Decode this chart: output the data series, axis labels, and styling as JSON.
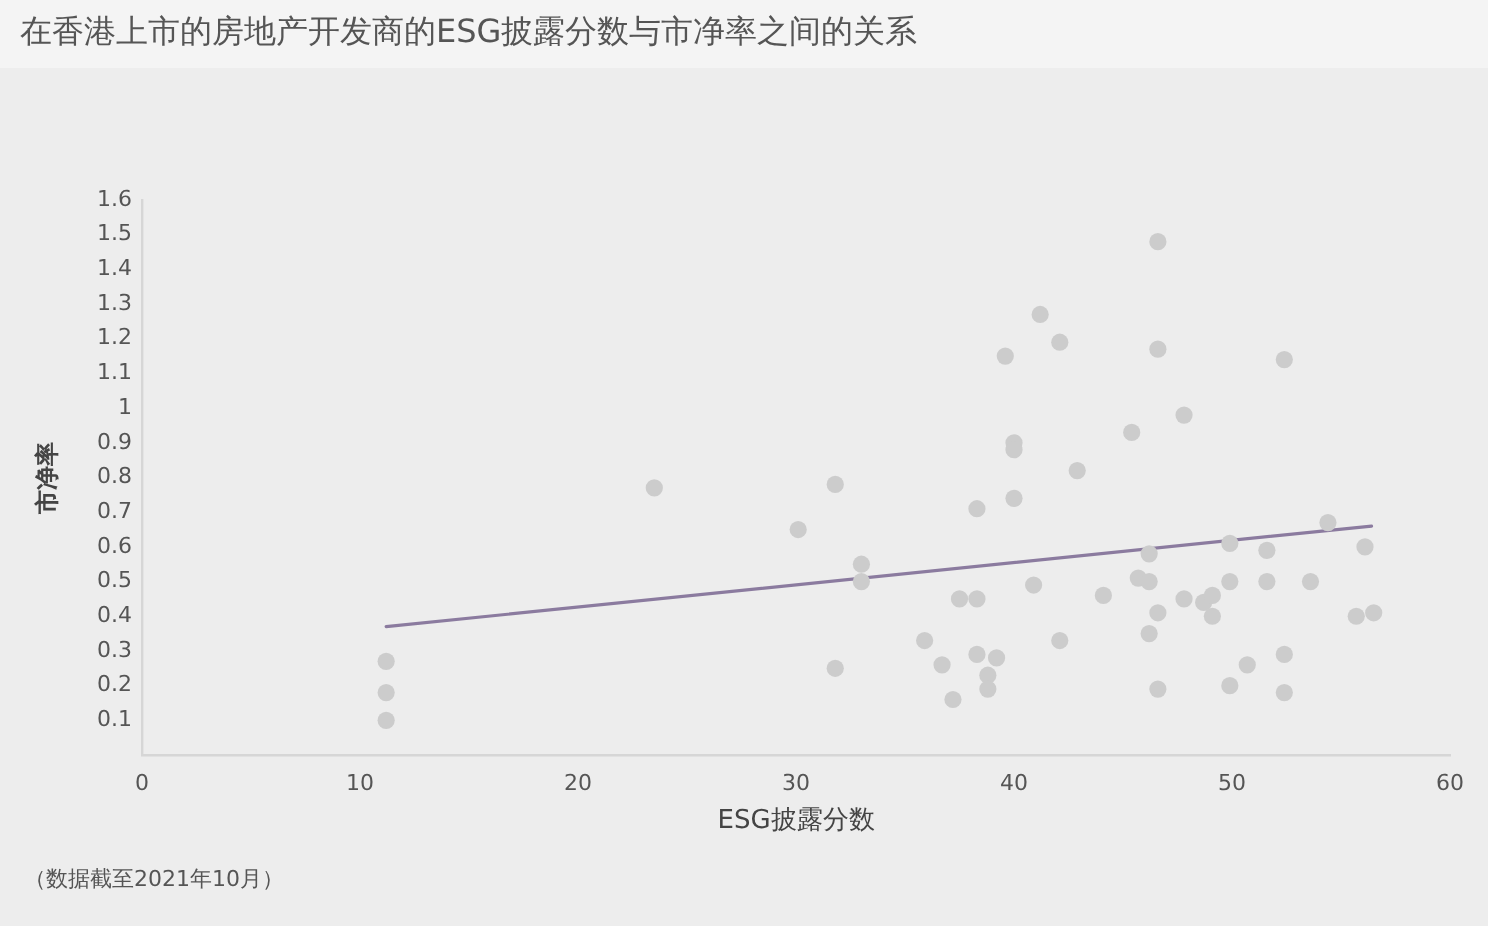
{
  "chart_data": {
    "type": "scatter",
    "title": "在香港上市的房地产开发商的ESG披露分数与市净率之间的关系",
    "xlabel": "ESG披露分数",
    "ylabel": "市净率",
    "annotations": [
      "（数据截至2021年10月）"
    ],
    "xlim": [
      0,
      60
    ],
    "xticks": [
      0,
      10,
      20,
      30,
      40,
      50,
      60
    ],
    "ylim": [
      0,
      1.6
    ],
    "yticks": [
      0.1,
      0.2,
      0.3,
      0.4,
      0.5,
      0.6,
      0.7,
      0.8,
      0.9,
      1,
      1.1,
      1.2,
      1.3,
      1.4,
      1.5,
      1.6
    ],
    "marker": "circle",
    "legend": false,
    "series": [
      {
        "color": "#cccccc",
        "x": [
          11.2,
          11.2,
          11.2,
          23.5,
          31.8,
          30.1,
          33.0,
          33.0,
          31.8,
          38.3,
          37.5,
          38.3,
          35.9,
          36.7,
          38.3,
          39.2,
          38.8,
          38.8,
          37.2,
          46.6,
          41.2,
          42.1,
          39.6,
          46.6,
          52.4,
          47.8,
          45.4,
          40.0,
          40.0,
          42.9,
          40.0,
          54.4,
          56.1,
          49.9,
          51.6,
          46.2,
          40.9,
          44.1,
          45.7,
          46.2,
          49.9,
          51.6,
          53.6,
          47.8,
          48.7,
          49.1,
          49.1,
          46.6,
          55.7,
          56.5,
          42.1,
          46.2,
          52.4,
          50.7,
          46.6,
          49.9,
          52.4
        ],
        "values": [
          0.27,
          0.18,
          0.1,
          0.77,
          0.78,
          0.65,
          0.55,
          0.5,
          0.25,
          0.71,
          0.45,
          0.45,
          0.33,
          0.26,
          0.29,
          0.28,
          0.23,
          0.19,
          0.16,
          1.48,
          1.27,
          1.19,
          1.15,
          1.17,
          1.14,
          0.98,
          0.93,
          0.9,
          0.88,
          0.82,
          0.74,
          0.67,
          0.6,
          0.61,
          0.59,
          0.58,
          0.49,
          0.46,
          0.51,
          0.5,
          0.5,
          0.5,
          0.5,
          0.45,
          0.44,
          0.46,
          0.4,
          0.41,
          0.4,
          0.41,
          0.33,
          0.35,
          0.29,
          0.26,
          0.19,
          0.2,
          0.18
        ]
      },
      {
        "type": "line",
        "color": "#8b7b9f",
        "marker": "none",
        "line_style": "solid",
        "x": [
          11.2,
          56.4
        ],
        "values": [
          0.37,
          0.66
        ]
      }
    ]
  }
}
